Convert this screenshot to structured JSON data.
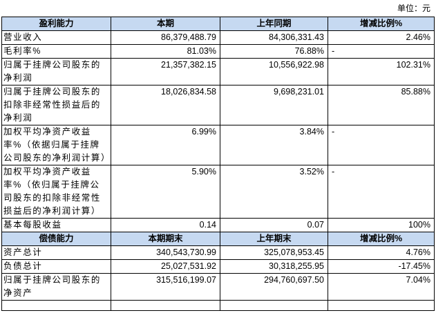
{
  "unit": "单位：元",
  "sections": [
    {
      "header": [
        "盈利能力",
        "本期",
        "上年同期",
        "增减比例%"
      ],
      "rows": [
        [
          "营业收入",
          "86,379,488.79",
          "84,306,331.43",
          "2.46%"
        ],
        [
          "毛利率%",
          "81.03%",
          "76.88%",
          "-"
        ],
        [
          "归属于挂牌公司股东的净利润",
          "21,357,382.15",
          "10,556,922.98",
          "102.31%"
        ],
        [
          "归属于挂牌公司股东的扣除非经常性损益后的净利润",
          "18,026,834.58",
          "9,698,231.01",
          "85.88%"
        ],
        [
          "加权平均净资产收益率%（依据归属于挂牌公司股东的净利润计算）",
          "6.99%",
          "3.84%",
          "-"
        ],
        [
          "加权平均净资产收益率%（依归属于挂牌公司股东的扣除非经常性损益后的净利润计算）",
          "5.90%",
          "3.52%",
          "-"
        ],
        [
          "基本每股收益",
          "0.14",
          "0.07",
          "100%"
        ]
      ]
    },
    {
      "header": [
        "偿债能力",
        "本期期末",
        "上年期末",
        "增减比例%"
      ],
      "rows": [
        [
          "资产总计",
          "340,543,730.99",
          "325,078,953.45",
          "4.76%"
        ],
        [
          "负债总计",
          "25,027,531.92",
          "30,318,255.95",
          "-17.45%"
        ],
        [
          "归属于挂牌公司股东的净资产",
          "315,516,199.07",
          "294,760,697.50",
          "7.04%"
        ]
      ]
    }
  ]
}
